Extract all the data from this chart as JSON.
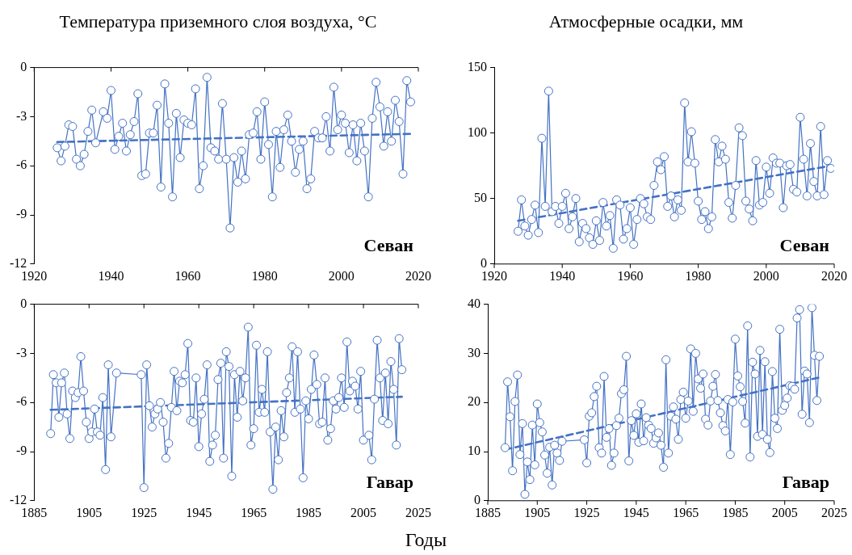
{
  "chart_data": [
    {
      "type": "line",
      "title": "Температура приземного слоя воздуха, °C",
      "annotations": [
        "Севан"
      ],
      "xlim": [
        1920,
        2020
      ],
      "xticks": [
        1920,
        1940,
        1960,
        1980,
        2000,
        2020
      ],
      "ylim": [
        -12,
        0
      ],
      "yticks": [
        -12,
        -9,
        -6,
        -3,
        0
      ],
      "grid": false,
      "marker": "circle",
      "series": [
        {
          "color": "#4472c4",
          "x": [
            1926,
            1927,
            1928,
            1929,
            1930,
            1931,
            1932,
            1933,
            1934,
            1935,
            1936,
            1938,
            1939,
            1940,
            1941,
            1942,
            1943,
            1944,
            1945,
            1946,
            1947,
            1948,
            1949,
            1950,
            1951,
            1952,
            1953,
            1954,
            1955,
            1956,
            1957,
            1958,
            1959,
            1960,
            1961,
            1962,
            1963,
            1964,
            1965,
            1966,
            1967,
            1968,
            1969,
            1970,
            1971,
            1972,
            1973,
            1974,
            1975,
            1976,
            1977,
            1978,
            1979,
            1980,
            1981,
            1982,
            1983,
            1984,
            1985,
            1986,
            1987,
            1988,
            1989,
            1990,
            1991,
            1992,
            1993,
            1994,
            1995,
            1996,
            1997,
            1998,
            1999,
            2000,
            2001,
            2002,
            2003,
            2004,
            2005,
            2006,
            2007,
            2008,
            2009,
            2010,
            2011,
            2012,
            2013,
            2014,
            2015,
            2016,
            2017,
            2018
          ],
          "values": [
            -4.9,
            -5.7,
            -4.8,
            -3.5,
            -3.6,
            -5.6,
            -6.0,
            -5.3,
            -3.9,
            -2.6,
            -4.6,
            -2.7,
            -3.1,
            -1.4,
            -5.0,
            -4.2,
            -3.4,
            -5.1,
            -4.1,
            -3.3,
            -1.6,
            -6.6,
            -6.5,
            -4.0,
            -4.0,
            -2.3,
            -7.3,
            -1.0,
            -3.4,
            -7.9,
            -2.8,
            -5.5,
            -3.2,
            -3.4,
            -3.5,
            -1.3,
            -7.4,
            -6.0,
            -0.6,
            -4.9,
            -5.1,
            -5.6,
            -2.2,
            -5.6,
            -9.8,
            -5.5,
            -7.0,
            -5.1,
            -6.8,
            -4.1,
            -4.0,
            -2.7,
            -5.6,
            -2.1,
            -4.7,
            -7.9,
            -3.9,
            -6.1,
            -3.8,
            -2.9,
            -4.5,
            -6.4,
            -5.0,
            -4.5,
            -7.4,
            -6.8,
            -3.9,
            -4.3,
            -4.3,
            -3.0,
            -5.1,
            -1.2,
            -3.8,
            -2.9,
            -3.4,
            -5.2,
            -3.5,
            -5.7,
            -3.4,
            -5.1,
            -7.9,
            -3.1,
            -0.9,
            -2.4,
            -4.8,
            -2.7,
            -4.5,
            -2.0,
            -3.3,
            -6.5,
            -0.8,
            -2.1
          ]
        },
        {
          "type": "line",
          "color": "#4472c4",
          "marker": "none",
          "line_style": "dashed",
          "x": [
            1926,
            2018
          ],
          "values": [
            -4.55,
            -4.05
          ]
        }
      ]
    },
    {
      "type": "line",
      "title": "Атмосферные осадки, мм",
      "annotations": [
        "Севан"
      ],
      "xlim": [
        1920,
        2020
      ],
      "xticks": [
        1920,
        1940,
        1960,
        1980,
        2000,
        2020
      ],
      "ylim": [
        0,
        150
      ],
      "yticks": [
        0,
        50,
        100,
        150
      ],
      "grid": false,
      "marker": "circle",
      "series": [
        {
          "color": "#4472c4",
          "x": [
            1927,
            1928,
            1929,
            1930,
            1931,
            1932,
            1933,
            1934,
            1935,
            1936,
            1937,
            1938,
            1939,
            1940,
            1941,
            1942,
            1943,
            1944,
            1945,
            1946,
            1947,
            1948,
            1949,
            1950,
            1951,
            1952,
            1953,
            1954,
            1955,
            1956,
            1957,
            1958,
            1959,
            1960,
            1961,
            1962,
            1963,
            1964,
            1965,
            1966,
            1967,
            1968,
            1969,
            1970,
            1971,
            1972,
            1973,
            1974,
            1975,
            1976,
            1977,
            1978,
            1979,
            1980,
            1981,
            1982,
            1983,
            1984,
            1985,
            1986,
            1987,
            1988,
            1989,
            1990,
            1991,
            1992,
            1993,
            1994,
            1995,
            1996,
            1997,
            1998,
            1999,
            2000,
            2001,
            2002,
            2003,
            2004,
            2005,
            2006,
            2007,
            2008,
            2009,
            2010,
            2011,
            2012,
            2013,
            2014,
            2015,
            2016,
            2017,
            2018,
            2019
          ],
          "values": [
            25,
            49,
            29,
            22,
            34,
            45,
            24,
            96,
            44,
            132,
            40,
            44,
            31,
            44,
            54,
            27,
            36,
            50,
            17,
            31,
            27,
            20,
            15,
            33,
            18,
            47,
            29,
            37,
            12,
            49,
            45,
            19,
            27,
            43,
            15,
            34,
            50,
            46,
            36,
            34,
            60,
            78,
            72,
            82,
            44,
            52,
            36,
            49,
            41,
            123,
            78,
            101,
            77,
            48,
            34,
            40,
            27,
            36,
            95,
            78,
            90,
            80,
            47,
            35,
            60,
            104,
            98,
            48,
            42,
            33,
            79,
            45,
            47,
            74,
            54,
            81,
            77,
            77,
            43,
            75,
            76,
            57,
            55,
            112,
            80,
            52,
            92,
            63,
            52,
            105,
            53,
            79,
            73
          ]
        },
        {
          "type": "line",
          "color": "#4472c4",
          "marker": "none",
          "line_style": "dashed",
          "x": [
            1927,
            2019
          ],
          "values": [
            33,
            75
          ]
        }
      ]
    },
    {
      "type": "line",
      "xlabel": "Годы",
      "annotations": [
        "Гавар"
      ],
      "xlim": [
        1885,
        2025
      ],
      "xticks": [
        1885,
        1905,
        1925,
        1945,
        1965,
        1985,
        2005,
        2025
      ],
      "ylim": [
        -12,
        0
      ],
      "yticks": [
        -12,
        -9,
        -6,
        -3,
        0
      ],
      "grid": false,
      "marker": "circle",
      "series": [
        {
          "color": "#4472c4",
          "x": [
            1891,
            1892,
            1893,
            1894,
            1895,
            1896,
            1897,
            1898,
            1899,
            1900,
            1901,
            1902,
            1903,
            1904,
            1905,
            1906,
            1907,
            1908,
            1909,
            1910,
            1911,
            1912,
            1913,
            1915,
            1924,
            1925,
            1926,
            1927,
            1928,
            1929,
            1930,
            1931,
            1932,
            1933,
            1934,
            1935,
            1936,
            1937,
            1938,
            1939,
            1940,
            1941,
            1942,
            1943,
            1944,
            1945,
            1946,
            1947,
            1948,
            1949,
            1950,
            1951,
            1952,
            1953,
            1954,
            1955,
            1956,
            1957,
            1958,
            1959,
            1960,
            1961,
            1962,
            1963,
            1964,
            1965,
            1966,
            1967,
            1968,
            1969,
            1970,
            1971,
            1972,
            1973,
            1974,
            1975,
            1976,
            1977,
            1978,
            1979,
            1980,
            1981,
            1982,
            1983,
            1984,
            1985,
            1986,
            1987,
            1988,
            1989,
            1990,
            1991,
            1992,
            1993,
            1994,
            1995,
            1996,
            1997,
            1998,
            1999,
            2000,
            2001,
            2002,
            2003,
            2004,
            2005,
            2007,
            2008,
            2009,
            2010,
            2011,
            2012,
            2013,
            2014,
            2015,
            2016,
            2017,
            2018,
            2019
          ],
          "values": [
            -7.9,
            -4.3,
            -4.8,
            -6.9,
            -4.8,
            -4.2,
            -6.7,
            -8.2,
            -5.3,
            -5.7,
            -5.4,
            -3.2,
            -5.3,
            -7.2,
            -8.2,
            -7.8,
            -6.4,
            -7.8,
            -8.0,
            -5.7,
            -10.1,
            -3.7,
            -8.1,
            -4.2,
            -4.3,
            -11.2,
            -3.7,
            -6.2,
            -7.5,
            -6.7,
            -6.4,
            -6.0,
            -7.2,
            -9.4,
            -8.5,
            -6.3,
            -4.1,
            -6.5,
            -4.7,
            -4.8,
            -4.3,
            -2.4,
            -7.1,
            -7.2,
            -4.5,
            -8.7,
            -6.7,
            -5.8,
            -3.7,
            -9.6,
            -8.6,
            -8.0,
            -4.6,
            -3.6,
            -9.4,
            -2.9,
            -3.8,
            -10.5,
            -4.3,
            -6.9,
            -4.1,
            -5.9,
            -4.5,
            -1.4,
            -8.6,
            -7.6,
            -2.5,
            -6.6,
            -5.2,
            -6.6,
            -2.9,
            -7.8,
            -11.3,
            -7.5,
            -9.5,
            -6.5,
            -8.1,
            -5.4,
            -4.5,
            -2.6,
            -6.6,
            -2.9,
            -6.4,
            -10.6,
            -5.9,
            -7.0,
            -5.2,
            -3.1,
            -4.9,
            -7.3,
            -7.2,
            -4.5,
            -8.3,
            -7.6,
            -5.9,
            -6.4,
            -5.7,
            -4.5,
            -6.3,
            -2.3,
            -5.3,
            -4.7,
            -5.0,
            -6.4,
            -4.1,
            -8.3,
            -8.0,
            -9.5,
            -5.8,
            -2.2,
            -4.5,
            -7.1,
            -4.2,
            -7.3,
            -3.5,
            -5.2,
            -8.6,
            -2.1,
            -4.0
          ]
        },
        {
          "type": "line",
          "color": "#4472c4",
          "marker": "none",
          "line_style": "dashed",
          "x": [
            1891,
            2019
          ],
          "values": [
            -6.45,
            -5.65
          ]
        }
      ]
    },
    {
      "type": "line",
      "annotations": [
        "Гавар"
      ],
      "xlim": [
        1885,
        2025
      ],
      "xticks": [
        1885,
        1905,
        1925,
        1945,
        1965,
        1985,
        2005,
        2025
      ],
      "ylim": [
        0,
        40
      ],
      "yticks": [
        0,
        10,
        20,
        30,
        40
      ],
      "grid": false,
      "marker": "circle",
      "series": [
        {
          "color": "#4472c4",
          "x": [
            1892,
            1893,
            1894,
            1895,
            1896,
            1897,
            1898,
            1899,
            1900,
            1901,
            1902,
            1903,
            1904,
            1905,
            1906,
            1907,
            1908,
            1909,
            1910,
            1911,
            1912,
            1913,
            1914,
            1915,
            1924,
            1925,
            1926,
            1927,
            1928,
            1929,
            1930,
            1931,
            1932,
            1933,
            1934,
            1935,
            1936,
            1937,
            1938,
            1939,
            1940,
            1941,
            1942,
            1943,
            1944,
            1945,
            1946,
            1947,
            1948,
            1949,
            1950,
            1951,
            1952,
            1953,
            1954,
            1955,
            1956,
            1957,
            1958,
            1959,
            1960,
            1961,
            1962,
            1963,
            1964,
            1965,
            1966,
            1967,
            1968,
            1969,
            1970,
            1971,
            1972,
            1973,
            1974,
            1975,
            1976,
            1977,
            1978,
            1979,
            1980,
            1981,
            1982,
            1983,
            1984,
            1985,
            1986,
            1987,
            1988,
            1989,
            1990,
            1991,
            1992,
            1993,
            1994,
            1995,
            1996,
            1997,
            1998,
            1999,
            2000,
            2001,
            2002,
            2003,
            2004,
            2005,
            2006,
            2007,
            2008,
            2009,
            2010,
            2011,
            2012,
            2013,
            2014,
            2015,
            2016,
            2017,
            2018,
            2019
          ],
          "values": [
            10.8,
            24.2,
            17.1,
            6.1,
            20.2,
            25.6,
            9.4,
            15.7,
            1.3,
            7.9,
            4.3,
            15.4,
            7.3,
            19.7,
            15.9,
            14.0,
            9.3,
            5.6,
            10.9,
            3.2,
            11.3,
            9.7,
            8.2,
            12.1,
            12.4,
            7.7,
            17.2,
            17.9,
            21.2,
            23.3,
            10.8,
            9.7,
            25.3,
            12.9,
            14.7,
            7.2,
            9.7,
            15.3,
            16.8,
            21.8,
            22.6,
            29.4,
            8.1,
            16.3,
            13.3,
            17.7,
            11.9,
            19.7,
            12.2,
            16.9,
            15.4,
            14.7,
            11.7,
            12.8,
            13.8,
            11.3,
            6.8,
            28.7,
            9.7,
            17.2,
            19.1,
            16.6,
            12.5,
            20.6,
            22.1,
            16.8,
            20.3,
            30.9,
            18.2,
            30.0,
            24.8,
            22.9,
            25.8,
            16.6,
            15.4,
            20.3,
            23.3,
            25.7,
            20.4,
            17.9,
            15.3,
            14.2,
            20.6,
            9.4,
            20.1,
            32.9,
            25.4,
            23.2,
            20.2,
            15.8,
            35.6,
            8.9,
            28.2,
            25.8,
            13.1,
            30.6,
            13.5,
            28.3,
            12.5,
            9.8,
            26.3,
            16.8,
            14.7,
            34.9,
            18.4,
            19.4,
            20.9,
            23.4,
            23.3,
            22.7,
            37.2,
            38.9,
            17.6,
            26.4,
            25.8,
            15.9,
            39.3,
            29.6,
            20.4,
            29.4
          ]
        },
        {
          "type": "line",
          "color": "#4472c4",
          "marker": "none",
          "line_style": "dashed",
          "x": [
            1892,
            2019
          ],
          "values": [
            10.4,
            25.1
          ]
        }
      ]
    }
  ]
}
